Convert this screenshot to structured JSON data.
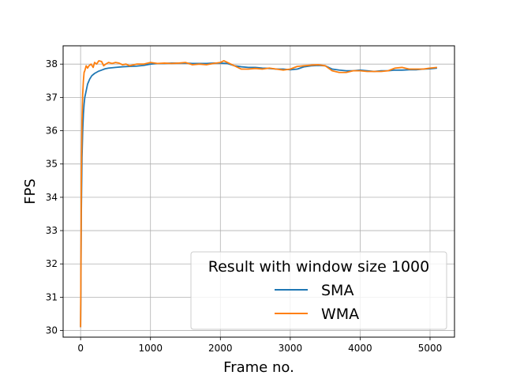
{
  "chart_data": {
    "type": "line",
    "xlabel": "Frame no.",
    "ylabel": "FPS",
    "xlim": [
      -250,
      5350
    ],
    "ylim": [
      29.8,
      38.55
    ],
    "xticks": [
      0,
      1000,
      2000,
      3000,
      4000,
      5000
    ],
    "yticks": [
      30,
      31,
      32,
      33,
      34,
      35,
      36,
      37,
      38
    ],
    "grid": true,
    "legend": {
      "title": "Result with window size 1000",
      "placement": "lower-right"
    },
    "series": [
      {
        "name": "SMA",
        "color": "#1f77b4",
        "x": [
          0,
          5,
          10,
          20,
          30,
          40,
          50,
          60,
          80,
          100,
          130,
          160,
          200,
          250,
          300,
          350,
          400,
          500,
          600,
          700,
          800,
          900,
          1000,
          1100,
          1200,
          1300,
          1400,
          1500,
          1600,
          1700,
          1800,
          1900,
          2000,
          2100,
          2200,
          2300,
          2400,
          2500,
          2600,
          2700,
          2800,
          2900,
          3000,
          3100,
          3200,
          3300,
          3400,
          3500,
          3600,
          3700,
          3800,
          3900,
          4000,
          4100,
          4200,
          4300,
          4400,
          4500,
          4600,
          4700,
          4800,
          4900,
          5000,
          5100
        ],
        "values": [
          30.1,
          31.6,
          33.5,
          35.2,
          36.0,
          36.5,
          36.8,
          37.0,
          37.2,
          37.4,
          37.55,
          37.65,
          37.72,
          37.78,
          37.82,
          37.86,
          37.88,
          37.9,
          37.92,
          37.93,
          37.94,
          37.96,
          38.0,
          38.02,
          38.02,
          38.03,
          38.03,
          38.03,
          38.02,
          38.02,
          38.02,
          38.03,
          38.03,
          38.02,
          37.95,
          37.92,
          37.9,
          37.9,
          37.88,
          37.87,
          37.85,
          37.85,
          37.83,
          37.85,
          37.92,
          37.95,
          37.96,
          37.95,
          37.85,
          37.82,
          37.8,
          37.8,
          37.82,
          37.8,
          37.78,
          37.8,
          37.8,
          37.82,
          37.82,
          37.83,
          37.83,
          37.85,
          37.86,
          37.88
        ]
      },
      {
        "name": "WMA",
        "color": "#ff7f0e",
        "x": [
          0,
          5,
          10,
          20,
          30,
          40,
          50,
          60,
          80,
          100,
          120,
          150,
          180,
          200,
          230,
          260,
          300,
          330,
          360,
          400,
          450,
          500,
          550,
          600,
          650,
          700,
          800,
          900,
          1000,
          1100,
          1200,
          1300,
          1400,
          1500,
          1600,
          1700,
          1800,
          1900,
          2000,
          2050,
          2100,
          2200,
          2300,
          2400,
          2500,
          2600,
          2700,
          2800,
          2900,
          3000,
          3100,
          3200,
          3300,
          3400,
          3500,
          3600,
          3700,
          3800,
          3900,
          4000,
          4100,
          4200,
          4300,
          4400,
          4500,
          4600,
          4700,
          4800,
          4900,
          5000,
          5100
        ],
        "values": [
          30.1,
          32.0,
          34.5,
          36.3,
          37.1,
          37.5,
          37.75,
          37.8,
          37.95,
          37.88,
          37.95,
          38.0,
          37.9,
          38.05,
          38.0,
          38.1,
          38.08,
          37.95,
          38.0,
          38.05,
          38.02,
          38.05,
          38.03,
          37.98,
          38.0,
          37.95,
          38.0,
          38.0,
          38.05,
          38.02,
          38.03,
          38.02,
          38.03,
          38.05,
          37.98,
          38.0,
          37.98,
          38.02,
          38.05,
          38.1,
          38.05,
          37.95,
          37.85,
          37.85,
          37.87,
          37.85,
          37.88,
          37.85,
          37.82,
          37.85,
          37.93,
          37.95,
          37.97,
          37.98,
          37.95,
          37.8,
          37.75,
          37.75,
          37.8,
          37.8,
          37.78,
          37.78,
          37.78,
          37.8,
          37.88,
          37.9,
          37.85,
          37.85,
          37.85,
          37.88,
          37.9
        ]
      }
    ]
  }
}
